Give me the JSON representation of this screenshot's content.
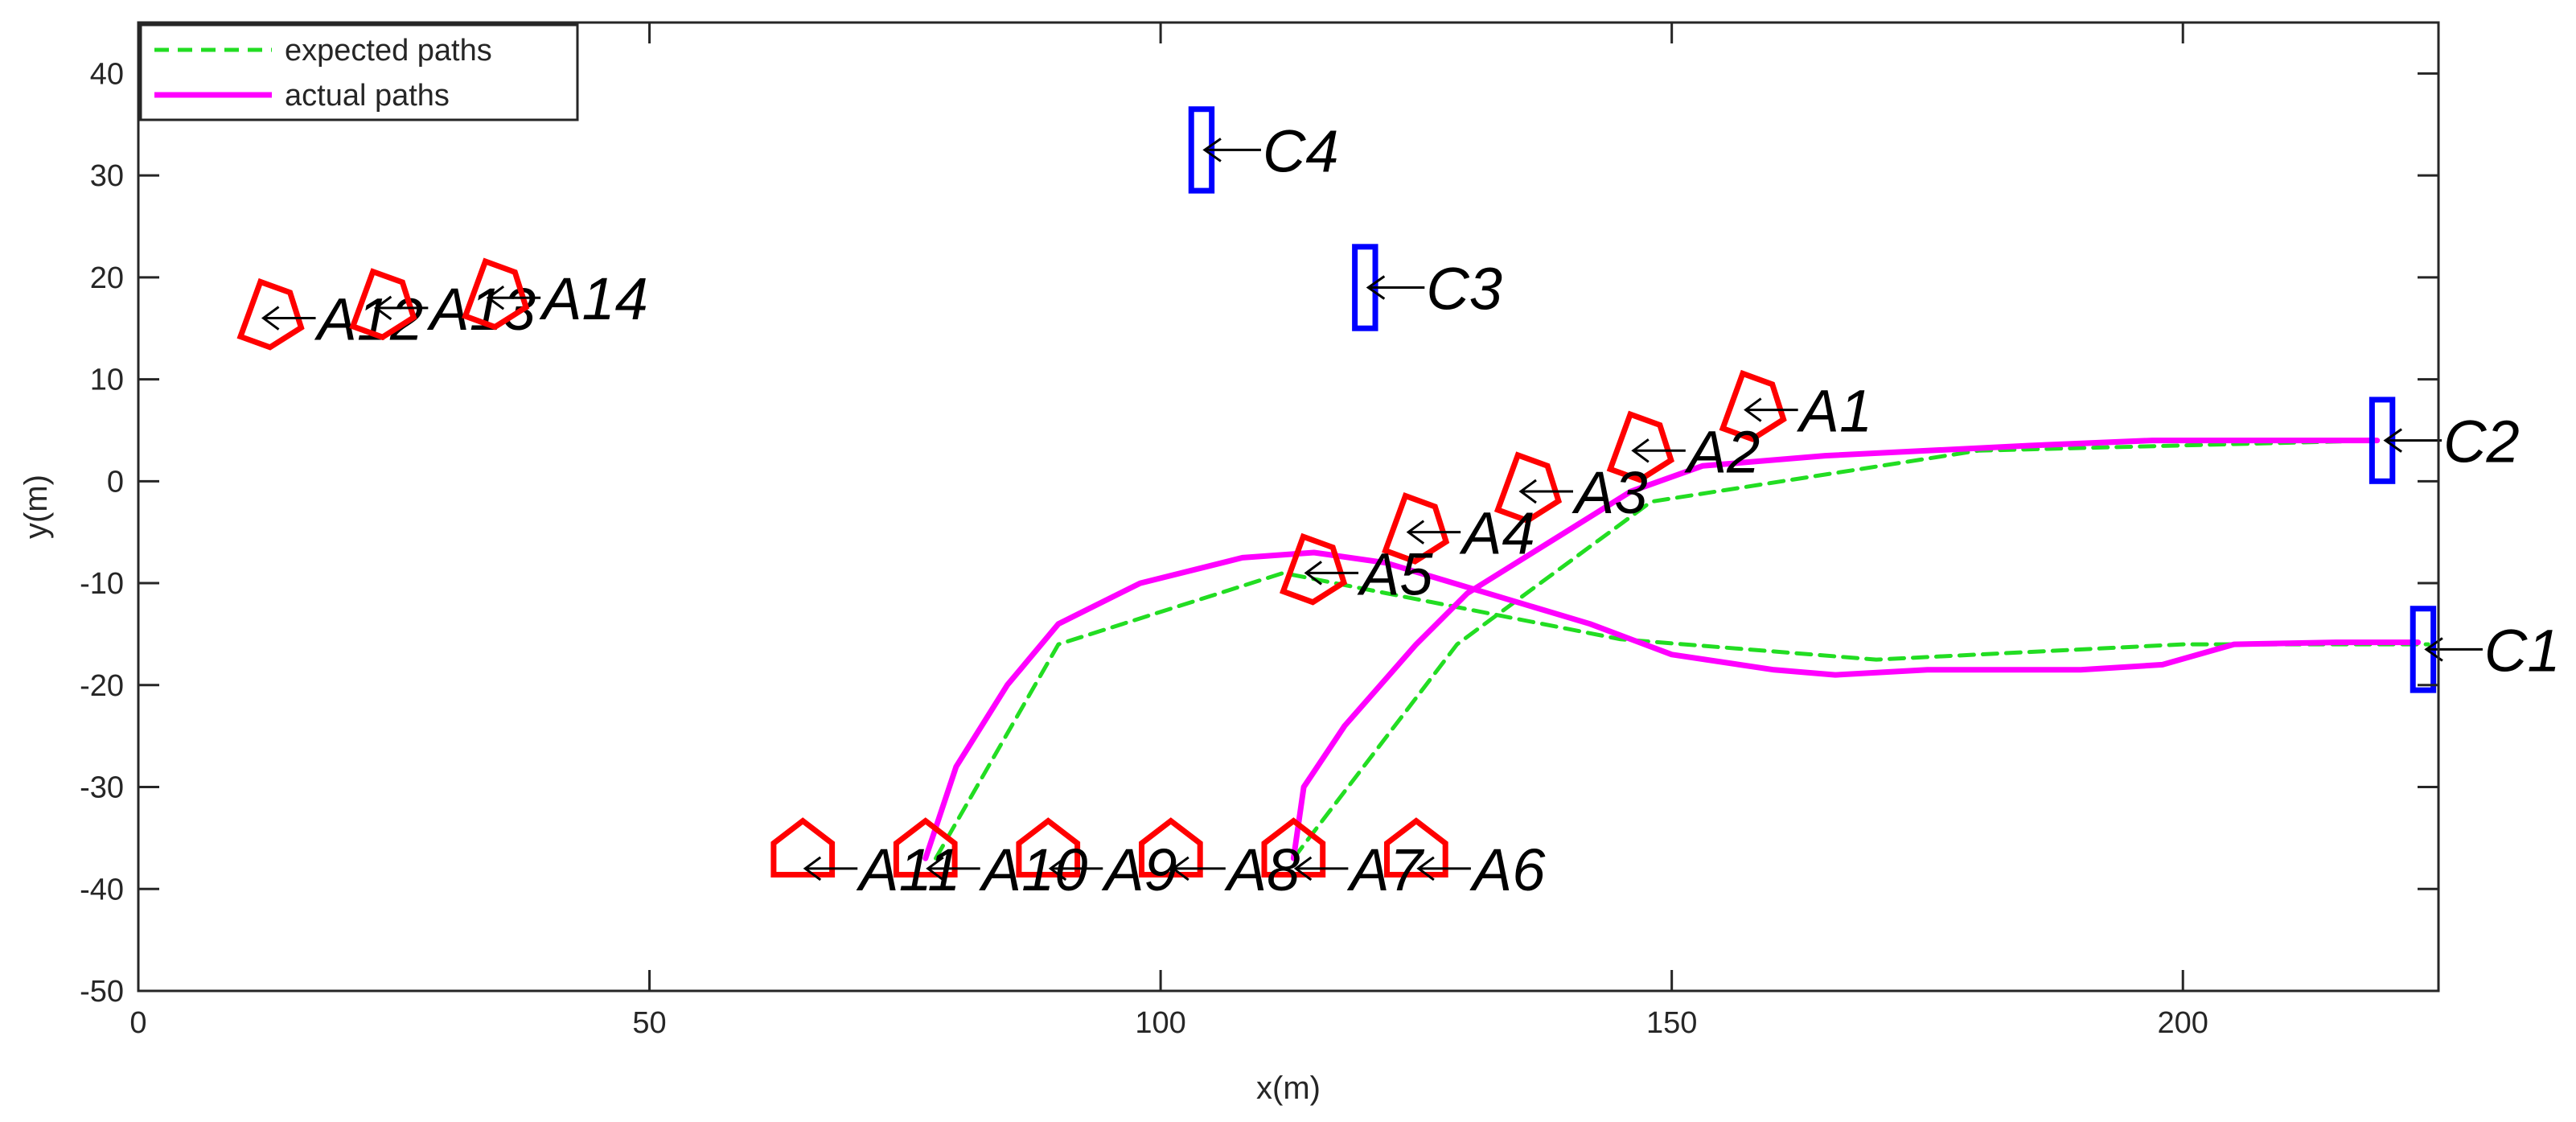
{
  "chart_data": {
    "type": "line",
    "title": "",
    "xlabel": "x(m)",
    "ylabel": "y(m)",
    "xlim": [
      0,
      225
    ],
    "ylim": [
      -50,
      45
    ],
    "xticks": [
      0,
      50,
      100,
      150,
      200
    ],
    "yticks": [
      -50,
      -40,
      -30,
      -20,
      -10,
      0,
      10,
      20,
      30,
      40
    ],
    "xtick_labels": [
      "0",
      "50",
      "100",
      "150",
      "200"
    ],
    "ytick_labels": [
      "-50",
      "-40",
      "-30",
      "-20",
      "-10",
      "0",
      "10",
      "20",
      "30",
      "40"
    ],
    "grid": false,
    "legend_position": "top-left",
    "colors": {
      "expected": "#22dd22",
      "actual": "#ff00ff",
      "agent": "#ff0000",
      "target": "#0000ff",
      "axis": "#262626"
    },
    "series": [
      {
        "name": "expected paths",
        "style": "dashed",
        "paths": [
          [
            [
              78,
              -37
            ],
            [
              90,
              -16
            ],
            [
              112,
              -9
            ],
            [
              145,
              -15.5
            ],
            [
              170,
              -17.5
            ],
            [
              200,
              -16
            ],
            [
              224,
              -16
            ]
          ],
          [
            [
              113,
              -37
            ],
            [
              129,
              -16
            ],
            [
              148,
              -2
            ],
            [
              180,
              3
            ],
            [
              219,
              4
            ]
          ]
        ]
      },
      {
        "name": "actual paths",
        "style": "solid",
        "paths": [
          [
            [
              77,
              -37
            ],
            [
              80,
              -28
            ],
            [
              85,
              -20
            ],
            [
              90,
              -14
            ],
            [
              98,
              -10
            ],
            [
              108,
              -7.5
            ],
            [
              115,
              -7
            ],
            [
              122,
              -8
            ],
            [
              132,
              -11
            ],
            [
              142,
              -14
            ],
            [
              150,
              -17
            ],
            [
              160,
              -18.5
            ],
            [
              166,
              -19
            ],
            [
              175,
              -18.5
            ],
            [
              190,
              -18.5
            ],
            [
              198,
              -18
            ],
            [
              205,
              -16
            ],
            [
              215,
              -15.8
            ],
            [
              223,
              -15.8
            ]
          ],
          [
            [
              113,
              -37
            ],
            [
              114,
              -30
            ],
            [
              118,
              -24
            ],
            [
              125,
              -16
            ],
            [
              130,
              -11
            ],
            [
              138,
              -6
            ],
            [
              146,
              -1
            ],
            [
              153,
              1.5
            ],
            [
              165,
              2.5
            ],
            [
              185,
              3.5
            ],
            [
              197,
              4
            ],
            [
              210,
              4
            ],
            [
              219,
              4
            ]
          ]
        ]
      }
    ],
    "agents": [
      {
        "label": "A1",
        "x": 157,
        "y": 7,
        "heading": -20
      },
      {
        "label": "A2",
        "x": 146,
        "y": 3,
        "heading": -20
      },
      {
        "label": "A3",
        "x": 135,
        "y": -1,
        "heading": -20
      },
      {
        "label": "A4",
        "x": 124,
        "y": -5,
        "heading": -20
      },
      {
        "label": "A5",
        "x": 114,
        "y": -9,
        "heading": -20
      },
      {
        "label": "A6",
        "x": 125,
        "y": -38,
        "heading": 90
      },
      {
        "label": "A7",
        "x": 113,
        "y": -38,
        "heading": 90
      },
      {
        "label": "A8",
        "x": 101,
        "y": -38,
        "heading": 90
      },
      {
        "label": "A9",
        "x": 89,
        "y": -38,
        "heading": 90
      },
      {
        "label": "A10",
        "x": 77,
        "y": -38,
        "heading": 90
      },
      {
        "label": "A11",
        "x": 65,
        "y": -38,
        "heading": 90
      },
      {
        "label": "A12",
        "x": 12,
        "y": 16,
        "heading": -20
      },
      {
        "label": "A13",
        "x": 23,
        "y": 17,
        "heading": -20
      },
      {
        "label": "A14",
        "x": 34,
        "y": 18,
        "heading": -20
      }
    ],
    "targets": [
      {
        "label": "C1",
        "x": 223.5,
        "y": -16.5,
        "w": 2,
        "h": 8
      },
      {
        "label": "C2",
        "x": 219.5,
        "y": 4,
        "w": 2,
        "h": 8
      },
      {
        "label": "C3",
        "x": 120,
        "y": 19,
        "w": 2,
        "h": 8
      },
      {
        "label": "C4",
        "x": 104,
        "y": 32.5,
        "w": 2,
        "h": 8
      }
    ]
  }
}
